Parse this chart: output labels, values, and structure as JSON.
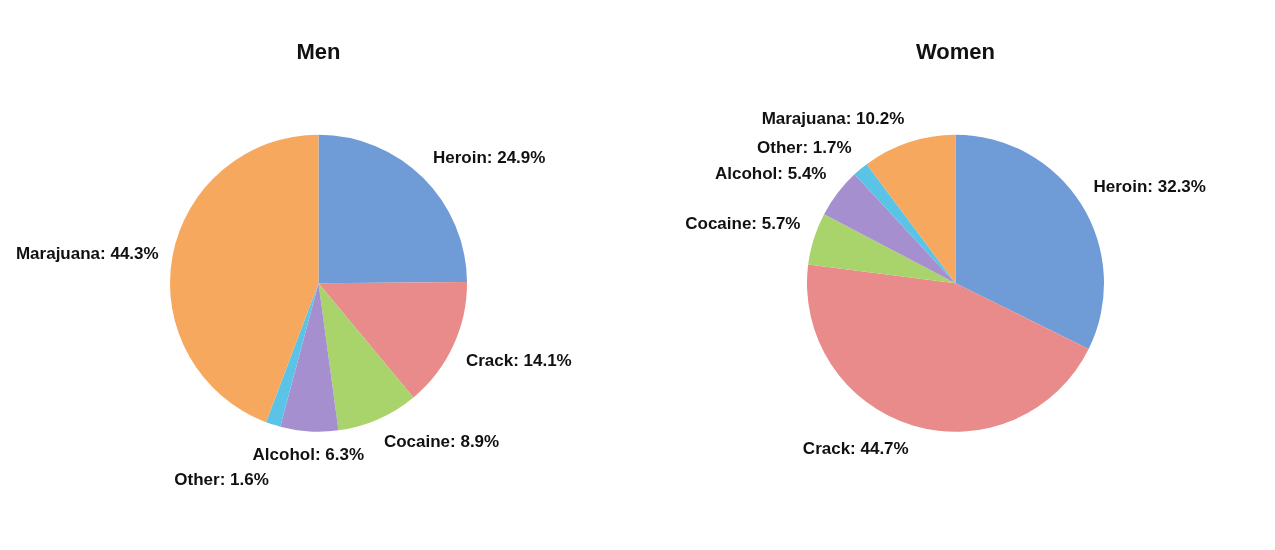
{
  "chart_data": [
    {
      "type": "pie",
      "title": "Men",
      "categories": [
        "Heroin",
        "Crack",
        "Cocaine",
        "Alcohol",
        "Other",
        "Marajuana"
      ],
      "values": [
        24.9,
        14.1,
        8.9,
        6.3,
        1.6,
        44.3
      ],
      "value_labels": [
        "24.9%",
        "14.1%",
        "8.9%",
        "6.3%",
        "1.6%",
        "44.3%"
      ],
      "colors": [
        "#6f9bd6",
        "#e98b8b",
        "#a9d36b",
        "#a68fcf",
        "#5bc3e6",
        "#f6a95e"
      ],
      "legend": false
    },
    {
      "type": "pie",
      "title": "Women",
      "categories": [
        "Heroin",
        "Crack",
        "Cocaine",
        "Alcohol",
        "Other",
        "Marajuana"
      ],
      "values": [
        32.3,
        44.7,
        5.7,
        5.4,
        1.7,
        10.2
      ],
      "value_labels": [
        "32.3%",
        "44.7%",
        "5.7%",
        "5.4%",
        "1.7%",
        "10.2%"
      ],
      "colors": [
        "#6f9bd6",
        "#e98b8b",
        "#a9d36b",
        "#a68fcf",
        "#5bc3e6",
        "#f6a95e"
      ],
      "legend": false
    }
  ]
}
